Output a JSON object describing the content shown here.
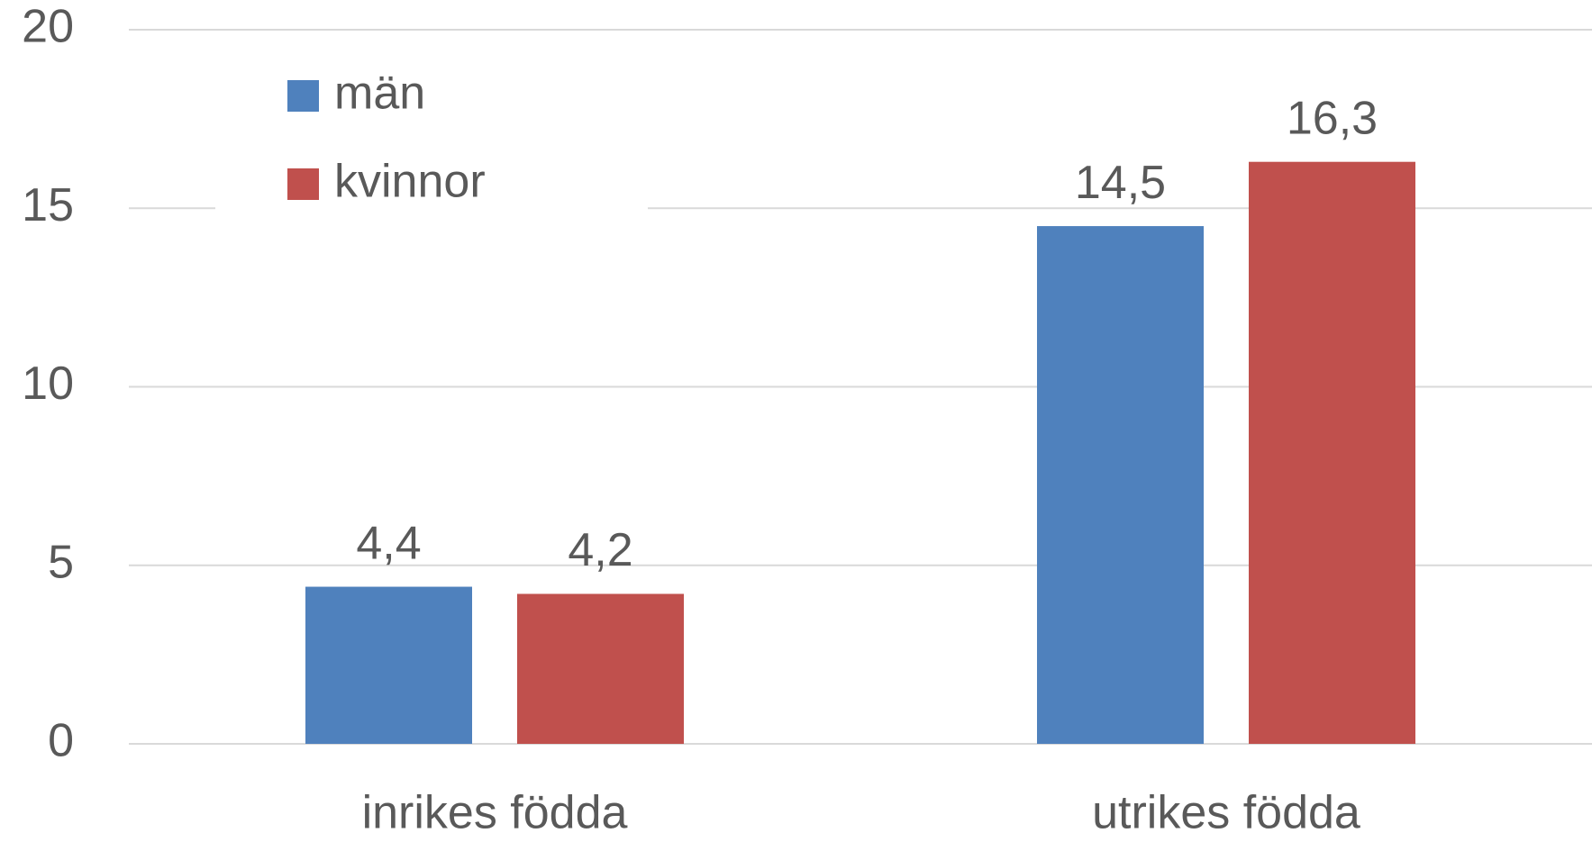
{
  "chart_data": {
    "type": "bar",
    "categories": [
      "inrikes födda",
      "utrikes födda"
    ],
    "series": [
      {
        "name": "män",
        "color": "#4f81bd",
        "values": [
          4.4,
          14.5
        ],
        "value_labels": [
          "4,4",
          "14,5"
        ]
      },
      {
        "name": "kvinnor",
        "color": "#c0504d",
        "values": [
          4.2,
          16.3
        ],
        "value_labels": [
          "4,2",
          "16,3"
        ]
      }
    ],
    "ylim": [
      0,
      20
    ],
    "yticks": [
      0,
      5,
      10,
      15,
      20
    ],
    "grid": true,
    "legend": "upper left"
  }
}
